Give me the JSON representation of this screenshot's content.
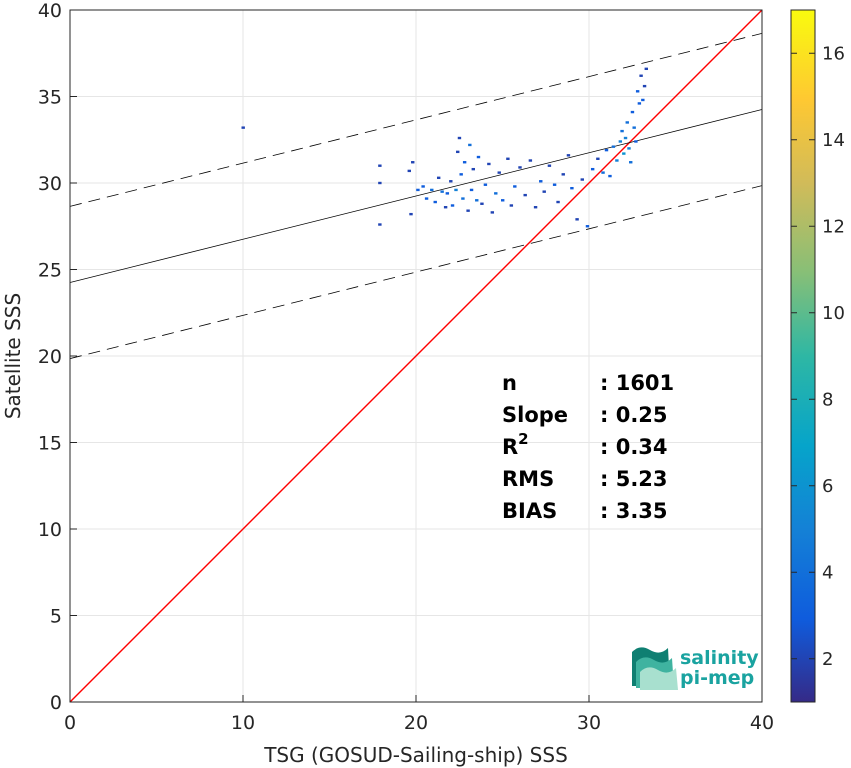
{
  "chart_data": {
    "type": "scatter",
    "title": "",
    "xlabel": "TSG (GOSUD-Sailing-ship) SSS",
    "ylabel": "Satellite SSS",
    "xlim": [
      0,
      40
    ],
    "ylim": [
      0,
      40
    ],
    "xticks": [
      0,
      10,
      20,
      30,
      40
    ],
    "yticks": [
      0,
      5,
      10,
      15,
      20,
      25,
      30,
      35,
      40
    ],
    "grid": true,
    "lines": {
      "identity": {
        "x": [
          0,
          40
        ],
        "y": [
          0,
          40
        ],
        "color": "#ff0000"
      },
      "fit": {
        "x": [
          0,
          40
        ],
        "y": [
          24.25,
          34.25
        ],
        "color": "#000000"
      },
      "fit_upper": {
        "x": [
          0,
          40
        ],
        "y": [
          28.65,
          38.65
        ],
        "color": "#000000",
        "dash": true
      },
      "fit_lower": {
        "x": [
          0,
          40
        ],
        "y": [
          19.85,
          29.85
        ],
        "color": "#000000",
        "dash": true
      }
    },
    "points": [
      {
        "x": 10.0,
        "y": 33.2,
        "c": 2
      },
      {
        "x": 17.9,
        "y": 31.0,
        "c": 2
      },
      {
        "x": 17.9,
        "y": 30.0,
        "c": 2
      },
      {
        "x": 17.9,
        "y": 27.6,
        "c": 2
      },
      {
        "x": 19.6,
        "y": 30.7,
        "c": 2
      },
      {
        "x": 19.7,
        "y": 28.2,
        "c": 2
      },
      {
        "x": 19.8,
        "y": 31.2,
        "c": 2
      },
      {
        "x": 20.1,
        "y": 29.6,
        "c": 3
      },
      {
        "x": 20.4,
        "y": 29.8,
        "c": 3
      },
      {
        "x": 20.6,
        "y": 29.1,
        "c": 3
      },
      {
        "x": 20.9,
        "y": 29.6,
        "c": 4
      },
      {
        "x": 21.1,
        "y": 28.9,
        "c": 3
      },
      {
        "x": 21.3,
        "y": 30.3,
        "c": 2
      },
      {
        "x": 21.5,
        "y": 29.5,
        "c": 4
      },
      {
        "x": 21.7,
        "y": 28.6,
        "c": 2
      },
      {
        "x": 21.8,
        "y": 29.4,
        "c": 3
      },
      {
        "x": 22.0,
        "y": 30.1,
        "c": 2
      },
      {
        "x": 22.1,
        "y": 28.7,
        "c": 3
      },
      {
        "x": 22.3,
        "y": 29.6,
        "c": 5
      },
      {
        "x": 22.4,
        "y": 31.8,
        "c": 2
      },
      {
        "x": 22.5,
        "y": 32.6,
        "c": 2
      },
      {
        "x": 22.6,
        "y": 30.5,
        "c": 3
      },
      {
        "x": 22.7,
        "y": 29.1,
        "c": 4
      },
      {
        "x": 22.8,
        "y": 31.2,
        "c": 3
      },
      {
        "x": 23.0,
        "y": 28.4,
        "c": 2
      },
      {
        "x": 23.1,
        "y": 32.2,
        "c": 4
      },
      {
        "x": 23.2,
        "y": 29.6,
        "c": 3
      },
      {
        "x": 23.3,
        "y": 30.8,
        "c": 2
      },
      {
        "x": 23.5,
        "y": 29.0,
        "c": 4
      },
      {
        "x": 23.6,
        "y": 31.5,
        "c": 3
      },
      {
        "x": 23.8,
        "y": 28.8,
        "c": 2
      },
      {
        "x": 24.0,
        "y": 29.9,
        "c": 3
      },
      {
        "x": 24.2,
        "y": 31.1,
        "c": 2
      },
      {
        "x": 24.4,
        "y": 28.3,
        "c": 2
      },
      {
        "x": 24.6,
        "y": 29.4,
        "c": 4
      },
      {
        "x": 24.8,
        "y": 30.6,
        "c": 2
      },
      {
        "x": 25.0,
        "y": 29.0,
        "c": 3
      },
      {
        "x": 25.3,
        "y": 31.4,
        "c": 2
      },
      {
        "x": 25.5,
        "y": 28.7,
        "c": 2
      },
      {
        "x": 25.7,
        "y": 29.8,
        "c": 3
      },
      {
        "x": 26.0,
        "y": 30.9,
        "c": 2
      },
      {
        "x": 26.3,
        "y": 29.3,
        "c": 2
      },
      {
        "x": 26.6,
        "y": 31.3,
        "c": 2
      },
      {
        "x": 26.9,
        "y": 28.6,
        "c": 2
      },
      {
        "x": 27.2,
        "y": 30.1,
        "c": 3
      },
      {
        "x": 27.4,
        "y": 29.5,
        "c": 2
      },
      {
        "x": 27.7,
        "y": 31.0,
        "c": 2
      },
      {
        "x": 28.0,
        "y": 29.9,
        "c": 3
      },
      {
        "x": 28.2,
        "y": 28.9,
        "c": 2
      },
      {
        "x": 28.5,
        "y": 30.5,
        "c": 2
      },
      {
        "x": 28.8,
        "y": 31.6,
        "c": 2
      },
      {
        "x": 29.0,
        "y": 29.7,
        "c": 3
      },
      {
        "x": 29.3,
        "y": 27.9,
        "c": 2
      },
      {
        "x": 29.6,
        "y": 30.2,
        "c": 2
      },
      {
        "x": 29.9,
        "y": 27.5,
        "c": 3
      },
      {
        "x": 30.2,
        "y": 30.8,
        "c": 3
      },
      {
        "x": 30.5,
        "y": 31.4,
        "c": 2
      },
      {
        "x": 30.8,
        "y": 30.6,
        "c": 4
      },
      {
        "x": 31.0,
        "y": 31.9,
        "c": 3
      },
      {
        "x": 31.2,
        "y": 30.4,
        "c": 3
      },
      {
        "x": 31.4,
        "y": 32.1,
        "c": 4
      },
      {
        "x": 31.6,
        "y": 31.3,
        "c": 5
      },
      {
        "x": 31.8,
        "y": 32.4,
        "c": 5
      },
      {
        "x": 31.9,
        "y": 33.0,
        "c": 4
      },
      {
        "x": 32.0,
        "y": 31.7,
        "c": 6
      },
      {
        "x": 32.1,
        "y": 32.6,
        "c": 5
      },
      {
        "x": 32.2,
        "y": 33.5,
        "c": 4
      },
      {
        "x": 32.3,
        "y": 32.0,
        "c": 5
      },
      {
        "x": 32.4,
        "y": 31.2,
        "c": 4
      },
      {
        "x": 32.5,
        "y": 34.1,
        "c": 3
      },
      {
        "x": 32.6,
        "y": 33.2,
        "c": 4
      },
      {
        "x": 32.7,
        "y": 32.4,
        "c": 3
      },
      {
        "x": 32.8,
        "y": 35.3,
        "c": 3
      },
      {
        "x": 32.9,
        "y": 34.6,
        "c": 3
      },
      {
        "x": 33.0,
        "y": 36.2,
        "c": 2
      },
      {
        "x": 33.1,
        "y": 34.8,
        "c": 3
      },
      {
        "x": 33.2,
        "y": 35.6,
        "c": 2
      },
      {
        "x": 33.3,
        "y": 36.6,
        "c": 2
      }
    ],
    "colorbar": {
      "min": 1,
      "max": 17,
      "ticks": [
        2,
        4,
        6,
        8,
        10,
        12,
        14,
        16
      ]
    },
    "stats": [
      {
        "label": "n",
        "value": ": 1601"
      },
      {
        "label": "Slope",
        "value": ": 0.25"
      },
      {
        "label": "R",
        "sup": "2",
        "value": ": 0.34"
      },
      {
        "label": "RMS",
        "value": ": 5.23"
      },
      {
        "label": "BIAS",
        "value": ": 3.35"
      }
    ]
  },
  "logo": {
    "line1": "salinity",
    "line2": "pi-mep"
  }
}
